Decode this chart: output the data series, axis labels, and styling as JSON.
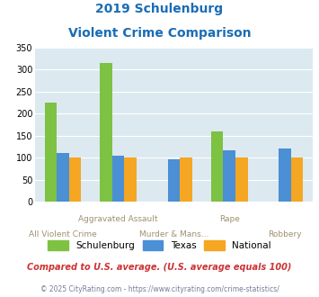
{
  "title_line1": "2019 Schulenburg",
  "title_line2": "Violent Crime Comparison",
  "schulenburg": [
    225,
    315,
    0,
    160,
    0
  ],
  "texas": [
    110,
    105,
    97,
    118,
    122
  ],
  "national": [
    100,
    100,
    100,
    100,
    100
  ],
  "labels_top": [
    "",
    "Aggravated Assault",
    "",
    "Rape",
    ""
  ],
  "labels_bot": [
    "All Violent Crime",
    "",
    "Murder & Mans...",
    "",
    "Robbery"
  ],
  "schulenburg_color": "#7dc242",
  "texas_color": "#4b8fd5",
  "national_color": "#f5a623",
  "bg_color": "#dce9f0",
  "title_color": "#1a6db5",
  "xlabel_color": "#a09070",
  "ylabel_max": 350,
  "yticks": [
    0,
    50,
    100,
    150,
    200,
    250,
    300,
    350
  ],
  "footnote1": "Compared to U.S. average. (U.S. average equals 100)",
  "footnote2": "© 2025 CityRating.com - https://www.cityrating.com/crime-statistics/",
  "footnote1_color": "#cc3333",
  "footnote2_color": "#7a7a9a"
}
